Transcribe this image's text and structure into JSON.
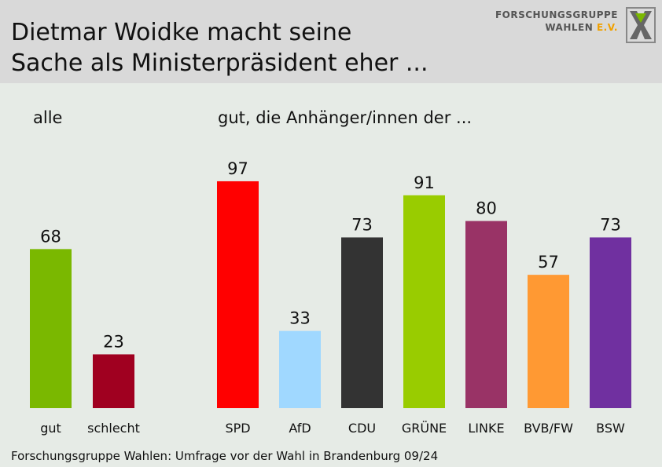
{
  "header": {
    "title_line1": "Dietmar Woidke macht seine",
    "title_line2": "Sache als Ministerpräsident eher ...",
    "logo_line1": "FORSCHUNGSGRUPPE",
    "logo_line2a": "WAHLEN ",
    "logo_line2b": "E.V."
  },
  "panels": {
    "left_label": "alle",
    "right_label": "gut, die Anhänger/innen der ..."
  },
  "footer": {
    "source": "Forschungsgruppe Wahlen: Umfrage vor der Wahl in Brandenburg 09/24"
  },
  "colors": {
    "background": "#e6ebe6",
    "header": "#d9d9d9"
  },
  "chart_data": [
    {
      "type": "bar",
      "title": "alle",
      "categories": [
        "gut",
        "schlecht"
      ],
      "values": [
        68,
        23
      ],
      "colors": [
        "#7ab800",
        "#a00020"
      ],
      "ylim": [
        0,
        100
      ],
      "grid": false
    },
    {
      "type": "bar",
      "title": "gut, die Anhänger/innen der ...",
      "categories": [
        "SPD",
        "AfD",
        "CDU",
        "GRÜNE",
        "LINKE",
        "BVB/FW",
        "BSW"
      ],
      "values": [
        97,
        33,
        73,
        91,
        80,
        57,
        73
      ],
      "colors": [
        "#ff0000",
        "#a0d8ff",
        "#333333",
        "#99cc00",
        "#993366",
        "#ff9933",
        "#7030a0"
      ],
      "ylim": [
        0,
        100
      ],
      "grid": false
    }
  ]
}
